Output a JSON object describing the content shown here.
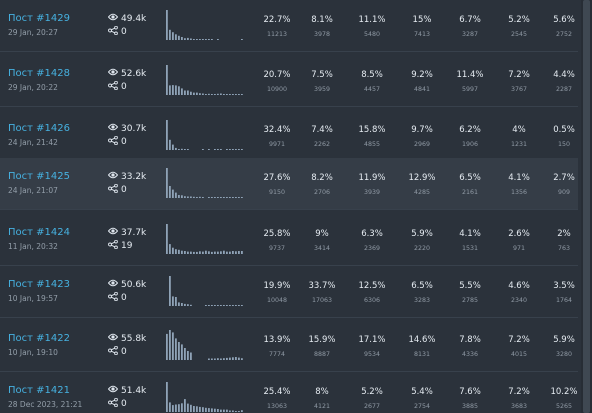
{
  "rows": [
    {
      "title": "Пост #1429",
      "date": "29 Jan, 20:27",
      "views": "49.4k",
      "shares": "0",
      "spark": [
        1.0,
        0.34,
        0.26,
        0.19,
        0.14,
        0.1,
        0.06,
        0.07,
        0.05,
        0.03,
        0.03,
        0.02,
        0.03,
        0.02,
        0.01,
        0.02,
        0.0,
        0.02,
        0.0,
        0.0,
        0.0,
        0.0,
        0.0,
        0.0,
        0.0,
        0.02
      ],
      "pcts": [
        "22.7%",
        "8.1%",
        "11.1%",
        "15%",
        "6.7%",
        "5.2%",
        "5.6%"
      ],
      "counts": [
        "11213",
        "3978",
        "5480",
        "7413",
        "3287",
        "2545",
        "2752"
      ]
    },
    {
      "title": "Пост #1428",
      "date": "29 Jan, 20:22",
      "views": "52.6k",
      "shares": "0",
      "spark": [
        1.0,
        0.32,
        0.33,
        0.32,
        0.29,
        0.22,
        0.15,
        0.15,
        0.11,
        0.08,
        0.08,
        0.06,
        0.05,
        0.03,
        0.04,
        0.03,
        0.03,
        0.04,
        0.05,
        0.03,
        0.02,
        0.02,
        0.02,
        0.02,
        0.02,
        0.03
      ],
      "pcts": [
        "20.7%",
        "7.5%",
        "8.5%",
        "9.2%",
        "11.4%",
        "7.2%",
        "4.4%"
      ],
      "counts": [
        "10900",
        "3959",
        "4457",
        "4841",
        "5997",
        "3767",
        "2287"
      ]
    },
    {
      "title": "Пост #1426",
      "date": "24 Jan, 21:42",
      "views": "30.7k",
      "shares": "0",
      "spark": [
        1.0,
        0.34,
        0.18,
        0.07,
        0.02,
        0.04,
        0.03,
        0.02,
        0.0,
        0.0,
        0.0,
        0.0,
        0.02,
        0.0,
        0.02,
        0.0,
        0.03,
        0.02,
        0.02,
        0.0,
        0.02,
        0.02,
        0.03,
        0.02,
        0.02,
        0.03
      ],
      "pcts": [
        "32.4%",
        "7.4%",
        "15.8%",
        "9.7%",
        "6.2%",
        "4%",
        "0.5%"
      ],
      "counts": [
        "9971",
        "2262",
        "4855",
        "2969",
        "1906",
        "1231",
        "150"
      ]
    },
    {
      "title": "Пост #1425",
      "date": "24 Jan, 21:07",
      "views": "33.2k",
      "shares": "0",
      "spark": [
        1.0,
        0.4,
        0.28,
        0.18,
        0.1,
        0.09,
        0.06,
        0.05,
        0.05,
        0.04,
        0.03,
        0.04,
        0.03,
        0.0,
        0.02,
        0.02,
        0.03,
        0.02,
        0.02,
        0.03,
        0.02,
        0.03,
        0.02,
        0.02,
        0.03,
        0.03
      ],
      "pcts": [
        "27.6%",
        "8.2%",
        "11.9%",
        "12.9%",
        "6.5%",
        "4.1%",
        "2.7%"
      ],
      "counts": [
        "9150",
        "2706",
        "3939",
        "4285",
        "2161",
        "1356",
        "909"
      ]
    },
    {
      "title": "Пост #1424",
      "date": "11 Jan, 20:32",
      "views": "37.7k",
      "shares": "19",
      "spark": [
        1.0,
        0.33,
        0.21,
        0.16,
        0.14,
        0.11,
        0.1,
        0.08,
        0.08,
        0.07,
        0.07,
        0.09,
        0.08,
        0.11,
        0.09,
        0.07,
        0.08,
        0.08,
        0.09,
        0.11,
        0.08,
        0.08,
        0.1,
        0.09,
        0.1,
        0.1
      ],
      "pcts": [
        "25.8%",
        "9%",
        "6.3%",
        "5.9%",
        "4.1%",
        "2.6%",
        "2%"
      ],
      "counts": [
        "9737",
        "3414",
        "2369",
        "2220",
        "1531",
        "971",
        "763"
      ]
    },
    {
      "title": "Пост #1423",
      "date": "10 Jan, 19:57",
      "views": "50.6k",
      "shares": "0",
      "spark": [
        0.0,
        1.0,
        0.32,
        0.3,
        0.12,
        0.1,
        0.07,
        0.06,
        0.04,
        0.0,
        0.0,
        0.0,
        0.0,
        0.02,
        0.02,
        0.02,
        0.02,
        0.03,
        0.02,
        0.02,
        0.02,
        0.02,
        0.03,
        0.02,
        0.02,
        0.02
      ],
      "pcts": [
        "19.9%",
        "33.7%",
        "12.5%",
        "6.5%",
        "5.5%",
        "4.6%",
        "3.5%"
      ],
      "counts": [
        "10048",
        "17063",
        "6306",
        "3283",
        "2785",
        "2340",
        "1764"
      ]
    },
    {
      "title": "Пост #1422",
      "date": "10 Jan, 19:10",
      "views": "55.8k",
      "shares": "0",
      "spark": [
        0.87,
        1.0,
        0.92,
        0.72,
        0.6,
        0.52,
        0.4,
        0.3,
        0.25,
        0.0,
        0.0,
        0.0,
        0.0,
        0.0,
        0.05,
        0.05,
        0.05,
        0.06,
        0.05,
        0.06,
        0.07,
        0.08,
        0.09,
        0.1,
        0.08,
        0.06
      ],
      "pcts": [
        "13.9%",
        "15.9%",
        "17.1%",
        "14.6%",
        "7.8%",
        "7.2%",
        "5.9%"
      ],
      "counts": [
        "7774",
        "8887",
        "9534",
        "8131",
        "4336",
        "4015",
        "3280"
      ]
    },
    {
      "title": "Пост #1421",
      "date": "28 Dec 2023, 21:21",
      "views": "51.4k",
      "shares": "0",
      "spark": [
        1.0,
        0.32,
        0.23,
        0.25,
        0.26,
        0.29,
        0.43,
        0.28,
        0.24,
        0.2,
        0.19,
        0.17,
        0.16,
        0.14,
        0.13,
        0.12,
        0.11,
        0.1,
        0.08,
        0.08,
        0.08,
        0.05,
        0.05,
        0.03,
        0.03,
        0.06
      ],
      "pcts": [
        "25.4%",
        "8%",
        "5.2%",
        "5.4%",
        "7.6%",
        "7.2%",
        "10.2%"
      ],
      "counts": [
        "13063",
        "4121",
        "2677",
        "2754",
        "3885",
        "3683",
        "5265"
      ]
    }
  ],
  "highlighted_row": 3,
  "colors": {
    "link": "#46b1e0",
    "bar": "#8fa3b7",
    "row_highlight": "#353d47",
    "background": "#2b323b"
  },
  "icons": {
    "views": "eye-icon",
    "shares": "share-icon"
  }
}
